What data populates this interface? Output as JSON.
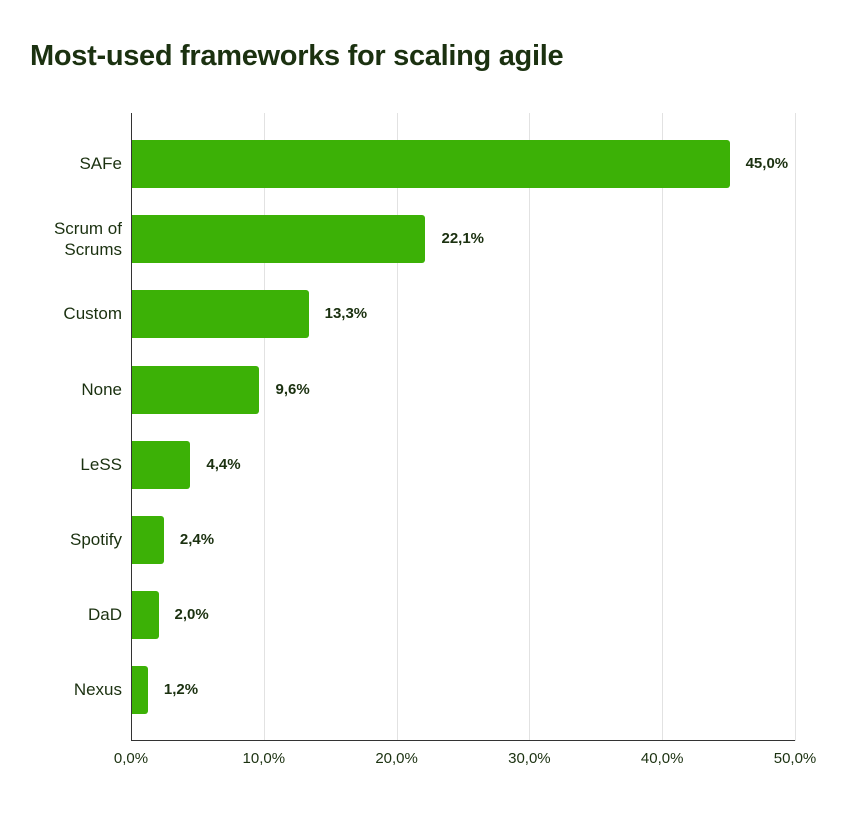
{
  "title": "Most-used frameworks for scaling agile",
  "colors": {
    "bar": "#3cb106",
    "text": "#1b3110",
    "grid": "#e2e2e2"
  },
  "x_ticks": [
    "0,0%",
    "10,0%",
    "20,0%",
    "30,0%",
    "40,0%",
    "50,0%"
  ],
  "bars": [
    {
      "label": "SAFe",
      "value": 45.0,
      "value_label": "45,0%"
    },
    {
      "label": "Scrum of Scrums",
      "value": 22.1,
      "value_label": "22,1%"
    },
    {
      "label": "Custom",
      "value": 13.3,
      "value_label": "13,3%"
    },
    {
      "label": "None",
      "value": 9.6,
      "value_label": "9,6%"
    },
    {
      "label": "LeSS",
      "value": 4.4,
      "value_label": "4,4%"
    },
    {
      "label": "Spotify",
      "value": 2.4,
      "value_label": "2,4%"
    },
    {
      "label": "DaD",
      "value": 2.0,
      "value_label": "2,0%"
    },
    {
      "label": "Nexus",
      "value": 1.2,
      "value_label": "1,2%"
    }
  ],
  "chart_data": {
    "type": "bar",
    "orientation": "horizontal",
    "title": "Most-used frameworks for scaling agile",
    "categories": [
      "SAFe",
      "Scrum of Scrums",
      "Custom",
      "None",
      "LeSS",
      "Spotify",
      "DaD",
      "Nexus"
    ],
    "values": [
      45.0,
      22.1,
      13.3,
      9.6,
      4.4,
      2.4,
      2.0,
      1.2
    ],
    "unit": "%",
    "xlabel": "",
    "ylabel": "",
    "xlim": [
      0,
      50
    ],
    "x_ticks": [
      "0,0%",
      "10,0%",
      "20,0%",
      "30,0%",
      "40,0%",
      "50,0%"
    ],
    "grid": "vertical",
    "legend": "none",
    "data_labels": true
  }
}
